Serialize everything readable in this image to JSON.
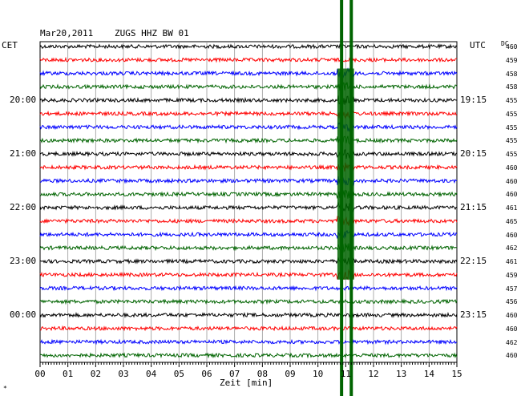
{
  "header": {
    "date": "Mar20,2011",
    "station": "ZUGS HHZ BW 01"
  },
  "left_axis_label": "CET",
  "right_axis_label": "UTC",
  "dc_header": "DC",
  "xlabel": "Zeit [min]",
  "corner_mark": "*",
  "colors": {
    "trace_cycle": [
      "#000000",
      "#ff0000",
      "#0000ff",
      "#006400"
    ],
    "event": "#006400",
    "grid": "#999999"
  },
  "chart_data": {
    "type": "line",
    "title": "Mar20,2011  ZUGS HHZ BW 01",
    "xlabel": "Zeit [min]",
    "xlim": [
      0,
      15
    ],
    "x_ticks": [
      "00",
      "01",
      "02",
      "03",
      "04",
      "05",
      "06",
      "07",
      "08",
      "09",
      "10",
      "11",
      "12",
      "13",
      "14",
      "15"
    ],
    "grid": true,
    "trace_count": 24,
    "trace_minutes": 15,
    "left_time_labels": [
      {
        "trace": 4,
        "label": "20:00"
      },
      {
        "trace": 8,
        "label": "21:00"
      },
      {
        "trace": 12,
        "label": "22:00"
      },
      {
        "trace": 16,
        "label": "23:00"
      },
      {
        "trace": 20,
        "label": "00:00"
      }
    ],
    "right_time_labels": [
      {
        "trace": 4,
        "label": "19:15"
      },
      {
        "trace": 8,
        "label": "20:15"
      },
      {
        "trace": 12,
        "label": "21:15"
      },
      {
        "trace": 16,
        "label": "22:15"
      },
      {
        "trace": 20,
        "label": "23:15"
      }
    ],
    "dc_offsets": [
      460,
      459,
      458,
      458,
      455,
      455,
      455,
      455,
      455,
      460,
      460,
      460,
      461,
      465,
      460,
      462,
      461,
      459,
      457,
      456,
      460,
      460,
      462,
      460
    ],
    "event_lines_minutes": [
      10.85,
      11.2
    ],
    "event_burst": {
      "start_min": 10.7,
      "end_min": 11.3,
      "first_trace": 2,
      "last_trace": 17
    }
  }
}
